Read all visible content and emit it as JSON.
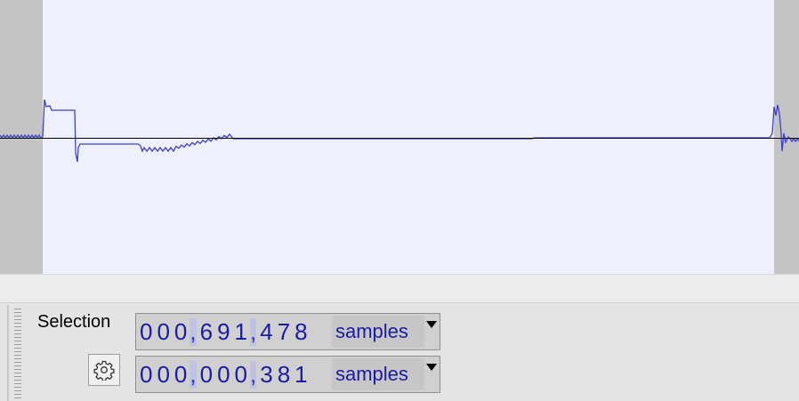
{
  "selection_toolbar": {
    "label": "Selection",
    "settings_icon": "gear-icon",
    "start": {
      "groups": [
        "000",
        "691",
        "478"
      ],
      "unit": "samples"
    },
    "length": {
      "groups": [
        "000",
        "000",
        "381"
      ],
      "unit": "samples"
    }
  },
  "colors": {
    "waveform": "#3c3fd0",
    "selection_background": "#eef1fd",
    "unselected_background": "#c4c4c4",
    "digits": "#1a1aa6"
  }
}
